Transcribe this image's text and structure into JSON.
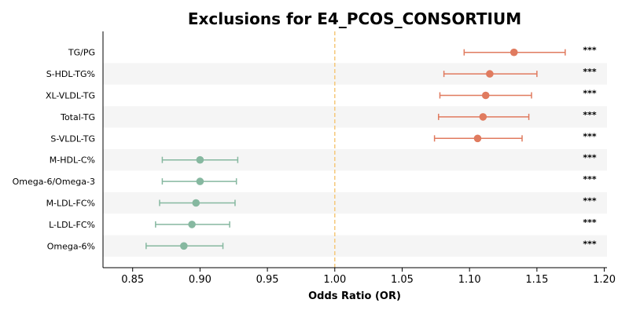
{
  "chart_data": {
    "type": "scatter",
    "title": "Exclusions for E4_PCOS_CONSORTIUM",
    "xlabel": "Odds Ratio (OR)",
    "ylabel": "",
    "xlim": [
      0.828,
      1.202
    ],
    "xticks": [
      0.85,
      0.9,
      0.95,
      1.0,
      1.05,
      1.1,
      1.15,
      1.2
    ],
    "xtick_labels": [
      "0.85",
      "0.90",
      "0.95",
      "1.00",
      "1.05",
      "1.10",
      "1.15",
      "1.20"
    ],
    "reference_line": 1.0,
    "colors": {
      "positive": "#e07b5f",
      "negative": "#86b8a0",
      "reference": "#f5c87a",
      "band": "#f5f5f5"
    },
    "points": [
      {
        "label": "TG/PG",
        "or": 1.133,
        "lower": 1.096,
        "upper": 1.171,
        "sig": "***"
      },
      {
        "label": "S-HDL-TG%",
        "or": 1.115,
        "lower": 1.081,
        "upper": 1.15,
        "sig": "***"
      },
      {
        "label": "XL-VLDL-TG",
        "or": 1.112,
        "lower": 1.078,
        "upper": 1.146,
        "sig": "***"
      },
      {
        "label": "Total-TG",
        "or": 1.11,
        "lower": 1.077,
        "upper": 1.144,
        "sig": "***"
      },
      {
        "label": "S-VLDL-TG",
        "or": 1.106,
        "lower": 1.074,
        "upper": 1.139,
        "sig": "***"
      },
      {
        "label": "M-HDL-C%",
        "or": 0.9,
        "lower": 0.872,
        "upper": 0.928,
        "sig": "***"
      },
      {
        "label": "Omega-6/Omega-3",
        "or": 0.9,
        "lower": 0.872,
        "upper": 0.927,
        "sig": "***"
      },
      {
        "label": "M-LDL-FC%",
        "or": 0.897,
        "lower": 0.87,
        "upper": 0.926,
        "sig": "***"
      },
      {
        "label": "L-LDL-FC%",
        "or": 0.894,
        "lower": 0.867,
        "upper": 0.922,
        "sig": "***"
      },
      {
        "label": "Omega-6%",
        "or": 0.888,
        "lower": 0.86,
        "upper": 0.917,
        "sig": "***"
      }
    ]
  }
}
